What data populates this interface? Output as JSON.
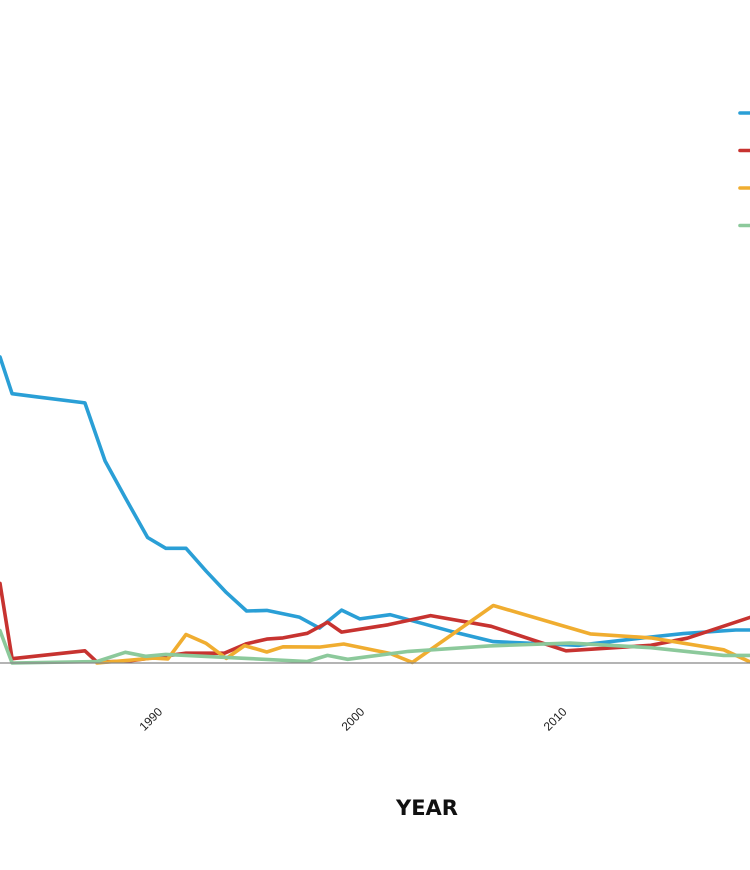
{
  "chart_data": {
    "type": "line",
    "title": "",
    "xlabel": "YEAR",
    "ylabel": "",
    "xlim": [
      1982.2,
      2019.3
    ],
    "ylim": [
      0,
      100
    ],
    "grid": false,
    "legend_position": "top-right",
    "x_ticks": [
      {
        "value": 1990,
        "label": "1990"
      },
      {
        "value": 2000,
        "label": "2000"
      },
      {
        "value": 2010,
        "label": "2010"
      }
    ],
    "series": [
      {
        "color": "#2a9fd6",
        "points": [
          [
            1982.2,
            100
          ],
          [
            1982.8,
            88
          ],
          [
            1984,
            87
          ],
          [
            1986.4,
            85
          ],
          [
            1987.4,
            66
          ],
          [
            1988.4,
            54
          ],
          [
            1989.5,
            41
          ],
          [
            1990.4,
            37.5
          ],
          [
            1991.4,
            37.5
          ],
          [
            1992.4,
            30
          ],
          [
            1993.4,
            23
          ],
          [
            1994.4,
            17
          ],
          [
            1995.4,
            17.2
          ],
          [
            1997,
            15
          ],
          [
            1998,
            11.4
          ],
          [
            1999.1,
            17.3
          ],
          [
            2000,
            14.4
          ],
          [
            2001.5,
            15.8
          ],
          [
            2004.6,
            10.2
          ],
          [
            2006.6,
            7
          ],
          [
            2010.8,
            5.8
          ],
          [
            2014.4,
            8.5
          ],
          [
            2016,
            9.6
          ],
          [
            2018.6,
            10.8
          ],
          [
            2019.3,
            10.8
          ]
        ]
      },
      {
        "color": "#c73330",
        "points": [
          [
            1982.2,
            26
          ],
          [
            1982.8,
            1.4
          ],
          [
            1986.4,
            4
          ],
          [
            1987,
            0.3
          ],
          [
            1988.5,
            0.6
          ],
          [
            1991.4,
            3.2
          ],
          [
            1993.3,
            3.2
          ],
          [
            1994.4,
            6.3
          ],
          [
            1995.4,
            7.8
          ],
          [
            1996.2,
            8.2
          ],
          [
            1997.4,
            9.7
          ],
          [
            1998.4,
            13.3
          ],
          [
            1999.1,
            10.1
          ],
          [
            2001.4,
            12.5
          ],
          [
            2003.5,
            15.5
          ],
          [
            2006.5,
            12
          ],
          [
            2010.2,
            4
          ],
          [
            2014.4,
            5.8
          ],
          [
            2016.2,
            8.1
          ],
          [
            2019.3,
            14.9
          ]
        ]
      },
      {
        "color": "#f0ad30",
        "points": [
          [
            1987,
            0
          ],
          [
            1989.8,
            1.6
          ],
          [
            1990.5,
            1.3
          ],
          [
            1991.4,
            9.3
          ],
          [
            1992.4,
            6.4
          ],
          [
            1993.4,
            1.5
          ],
          [
            1994.3,
            5.7
          ],
          [
            1995.4,
            3.6
          ],
          [
            1996.2,
            5.3
          ],
          [
            1998,
            5.2
          ],
          [
            1999.2,
            6.2
          ],
          [
            2001.5,
            3.1
          ],
          [
            2002.6,
            0.2
          ],
          [
            2006.6,
            18.8
          ],
          [
            2011.4,
            9.5
          ],
          [
            2014.4,
            8.2
          ],
          [
            2018,
            4.3
          ],
          [
            2019.3,
            0.4
          ]
        ]
      },
      {
        "color": "#8cc99b",
        "points": [
          [
            1982.2,
            10.6
          ],
          [
            1982.8,
            0
          ],
          [
            1987,
            0.5
          ],
          [
            1988.4,
            3.5
          ],
          [
            1989.4,
            2.2
          ],
          [
            1990.4,
            2.8
          ],
          [
            1994.4,
            1.5
          ],
          [
            1997.4,
            0.5
          ],
          [
            1998.4,
            2.5
          ],
          [
            1999.4,
            1.2
          ],
          [
            2002.4,
            3.8
          ],
          [
            2006.4,
            5.6
          ],
          [
            2010.4,
            6.5
          ],
          [
            2014.4,
            5
          ],
          [
            2018,
            2.5
          ],
          [
            2019.3,
            2.5
          ]
        ]
      }
    ]
  }
}
